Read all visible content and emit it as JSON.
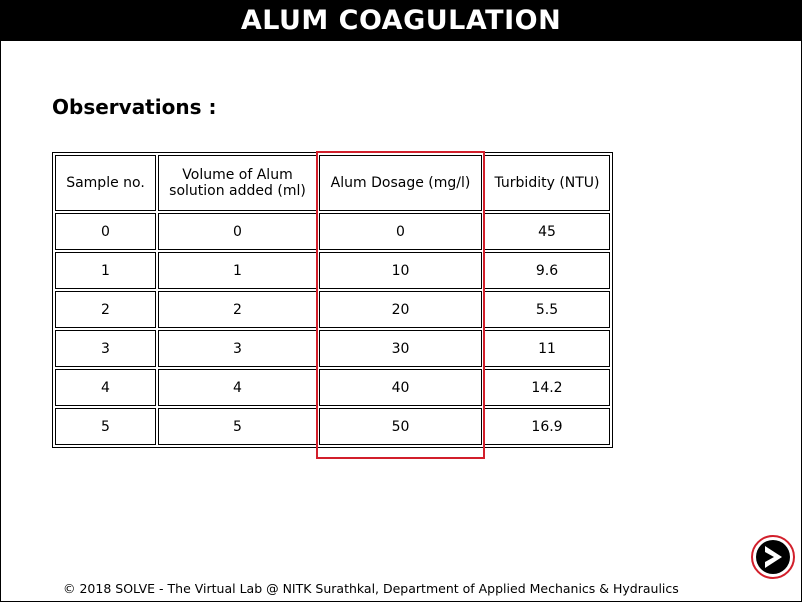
{
  "header": {
    "title": "ALUM COAGULATION"
  },
  "main": {
    "heading": "Observations :",
    "table": {
      "columns": [
        "Sample no.",
        "Volume of Alum solution added (ml)",
        "Alum Dosage (mg/l)",
        "Turbidity (NTU)"
      ],
      "rows": [
        [
          "0",
          "0",
          "0",
          "45"
        ],
        [
          "1",
          "1",
          "10",
          "9.6"
        ],
        [
          "2",
          "2",
          "20",
          "5.5"
        ],
        [
          "3",
          "3",
          "30",
          "11"
        ],
        [
          "4",
          "4",
          "40",
          "14.2"
        ],
        [
          "5",
          "5",
          "50",
          "16.9"
        ]
      ]
    }
  },
  "footer": {
    "text": "© 2018 SOLVE - The Virtual Lab @ NITK Surathkal, Department of Applied Mechanics & Hydraulics"
  },
  "nav": {
    "next_icon": "next-arrow-icon"
  },
  "colors": {
    "highlight": "#d21f2b",
    "title_bg": "#000000",
    "title_text": "#ffffff"
  }
}
